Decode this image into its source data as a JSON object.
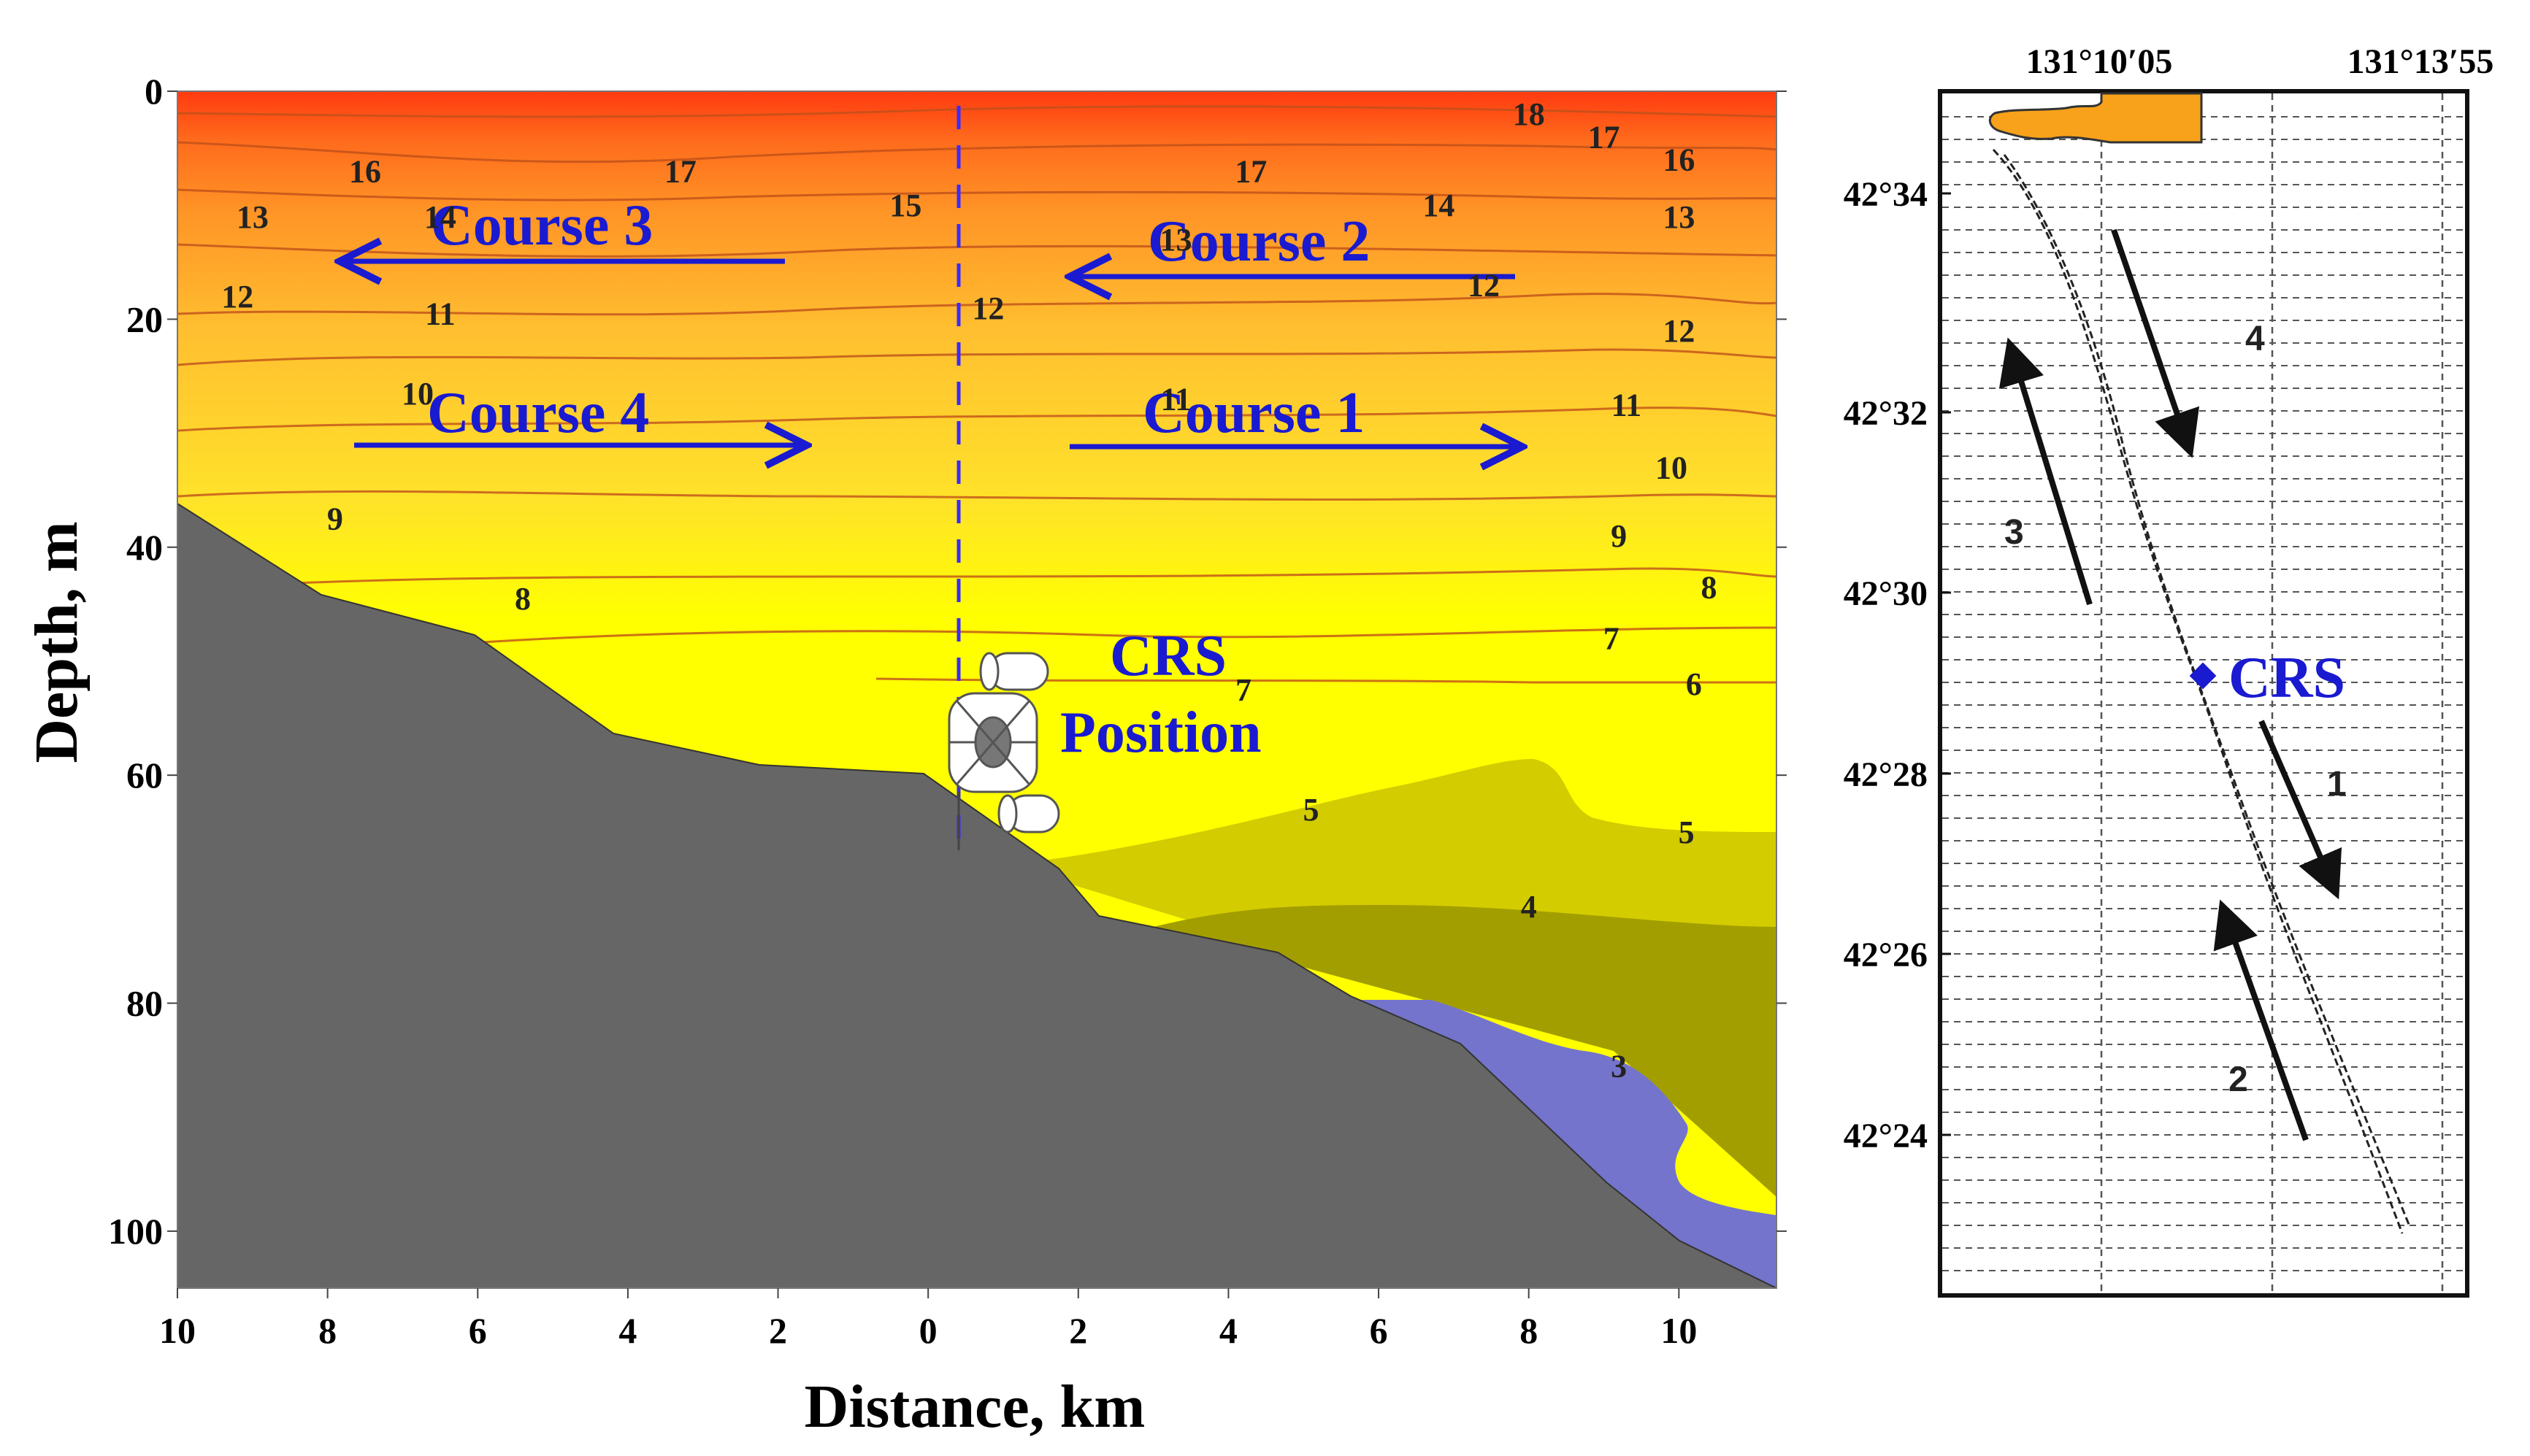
{
  "chart_data": [
    {
      "type": "contour",
      "xlabel": "Distance, km",
      "ylabel": "Depth, m",
      "x_ticks": [
        "10",
        "8",
        "6",
        "4",
        "2",
        "0",
        "2",
        "4",
        "6",
        "8",
        "10"
      ],
      "x_tick_values": [
        -10,
        -8,
        -6,
        -4,
        -2,
        0,
        2,
        4,
        6,
        8,
        10
      ],
      "y_ticks": [
        "0",
        "20",
        "40",
        "60",
        "80",
        "100"
      ],
      "y_tick_values": [
        0,
        20,
        40,
        60,
        80,
        100
      ],
      "xlim": [
        -10,
        11.3
      ],
      "ylim": [
        0,
        105
      ],
      "isotherm_labels": [
        {
          "text": "18",
          "x": 8,
          "y": 2
        },
        {
          "text": "17",
          "x": 9,
          "y": 4
        },
        {
          "text": "16",
          "x": 10,
          "y": 6
        },
        {
          "text": "16",
          "x": -7.5,
          "y": 7
        },
        {
          "text": "17",
          "x": -3.3,
          "y": 7
        },
        {
          "text": "15",
          "x": -0.3,
          "y": 10
        },
        {
          "text": "17",
          "x": 4.3,
          "y": 7
        },
        {
          "text": "14",
          "x": 6.8,
          "y": 10
        },
        {
          "text": "13",
          "x": 10,
          "y": 11
        },
        {
          "text": "13",
          "x": -9,
          "y": 11
        },
        {
          "text": "14",
          "x": -6.5,
          "y": 11
        },
        {
          "text": "13",
          "x": 3.3,
          "y": 13
        },
        {
          "text": "12",
          "x": -9.2,
          "y": 18
        },
        {
          "text": "11",
          "x": -6.5,
          "y": 19.5
        },
        {
          "text": "12",
          "x": 0.8,
          "y": 19
        },
        {
          "text": "12",
          "x": 7.4,
          "y": 17
        },
        {
          "text": "12",
          "x": 10,
          "y": 21
        },
        {
          "text": "10",
          "x": -6.8,
          "y": 26.5
        },
        {
          "text": "11",
          "x": 3.3,
          "y": 27
        },
        {
          "text": "11",
          "x": 9.3,
          "y": 27.5
        },
        {
          "text": "10",
          "x": 9.9,
          "y": 33
        },
        {
          "text": "9",
          "x": -7.9,
          "y": 37.5
        },
        {
          "text": "9",
          "x": 9.2,
          "y": 39
        },
        {
          "text": "8",
          "x": -5.4,
          "y": 44.5
        },
        {
          "text": "8",
          "x": 10.4,
          "y": 43.5
        },
        {
          "text": "7",
          "x": 9.1,
          "y": 48
        },
        {
          "text": "7",
          "x": 4.2,
          "y": 52.5
        },
        {
          "text": "6",
          "x": 10.2,
          "y": 52
        },
        {
          "text": "5",
          "x": 5.1,
          "y": 63
        },
        {
          "text": "5",
          "x": 10.1,
          "y": 65
        },
        {
          "text": "4",
          "x": 8,
          "y": 71.5
        },
        {
          "text": "3",
          "x": 9.2,
          "y": 85.5
        }
      ],
      "courses": [
        {
          "label": "Course 3",
          "direction": "left"
        },
        {
          "label": "Course 2",
          "direction": "left"
        },
        {
          "label": "Course 4",
          "direction": "right"
        },
        {
          "label": "Course 1",
          "direction": "right"
        }
      ],
      "crs_label_line1": "CRS",
      "crs_label_line2": "Position",
      "colors": {
        "bottom": "#666666",
        "cold_water": "#7474cc",
        "olive_dark": "#a39e00",
        "olive_light": "#d3cc00",
        "yellow": "#ffff00",
        "course_blue": "#1a1ad0"
      }
    },
    {
      "type": "map",
      "lon_ticks": [
        "131°10′05",
        "131°13′55"
      ],
      "lat_ticks": [
        "42°34",
        "42°32",
        "42°30",
        "42°28",
        "42°26",
        "42°24"
      ],
      "track_labels": [
        "4",
        "3",
        "1",
        "2"
      ],
      "crs_label": "CRS"
    }
  ]
}
